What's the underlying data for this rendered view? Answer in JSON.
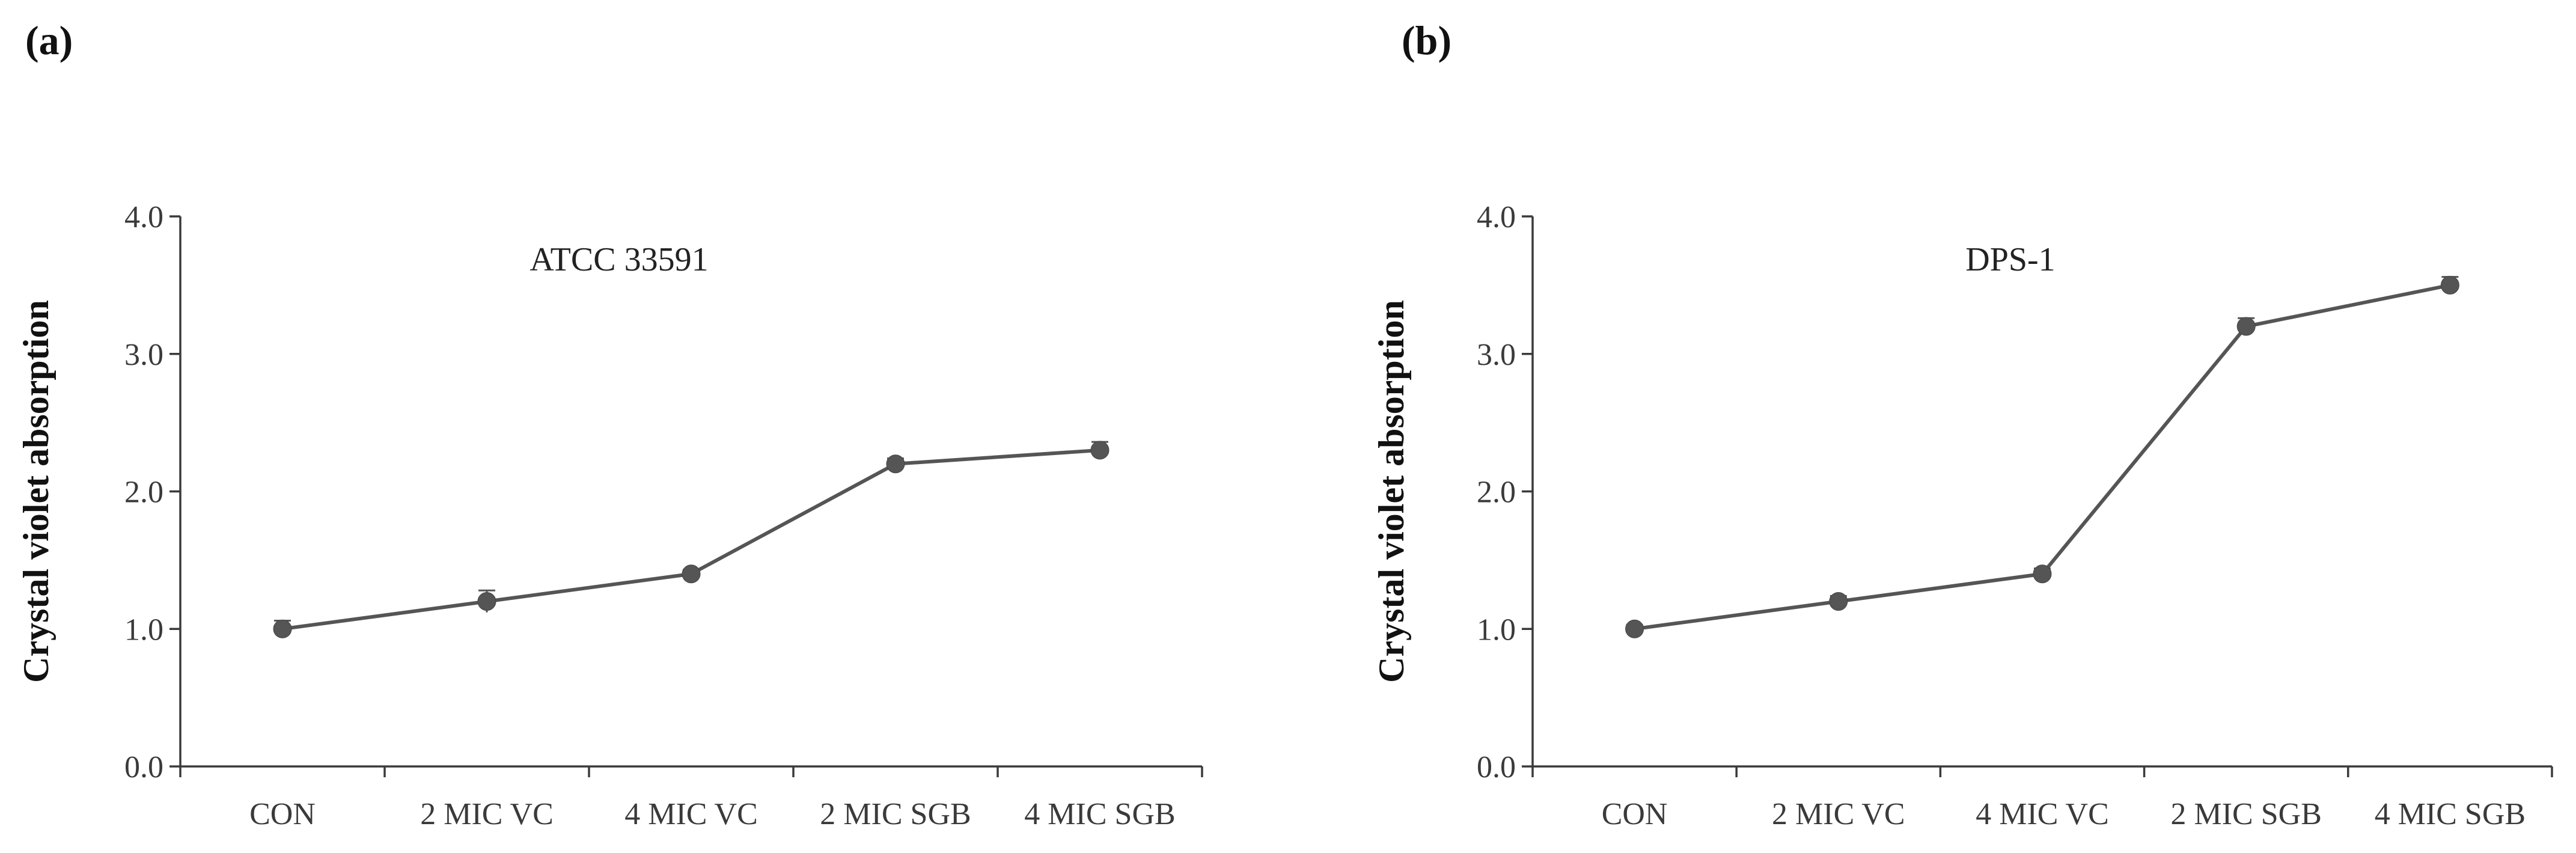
{
  "panels": [
    {
      "label": "(a)"
    },
    {
      "label": "(b)"
    }
  ],
  "chart_data": [
    {
      "type": "line",
      "title": "ATCC 33591",
      "xlabel": "",
      "ylabel": "Crystal violet absorption",
      "categories": [
        "CON",
        "2 MIC VC",
        "4 MIC VC",
        "2 MIC SGB",
        "4 MIC SGB"
      ],
      "series": [
        {
          "name": "ATCC 33591",
          "values": [
            1.0,
            1.2,
            1.4,
            2.2,
            2.3
          ],
          "errors": [
            0.06,
            0.08,
            0.03,
            0.04,
            0.06
          ]
        }
      ],
      "ylim": [
        0,
        4
      ],
      "yticks": [
        0.0,
        1.0,
        2.0,
        3.0,
        4.0
      ],
      "ytick_labels": [
        "0.0",
        "1.0",
        "2.0",
        "3.0",
        "4.0"
      ],
      "grid": false,
      "color": "#555555"
    },
    {
      "type": "line",
      "title": "DPS-1",
      "xlabel": "",
      "ylabel": "Crystal violet absorption",
      "categories": [
        "CON",
        "2 MIC VC",
        "4 MIC VC",
        "2 MIC SGB",
        "4 MIC SGB"
      ],
      "series": [
        {
          "name": "DPS-1",
          "values": [
            1.0,
            1.2,
            1.4,
            3.2,
            3.5
          ],
          "errors": [
            0.03,
            0.04,
            0.04,
            0.06,
            0.06
          ]
        }
      ],
      "ylim": [
        0,
        4
      ],
      "yticks": [
        0.0,
        1.0,
        2.0,
        3.0,
        4.0
      ],
      "ytick_labels": [
        "0.0",
        "1.0",
        "2.0",
        "3.0",
        "4.0"
      ],
      "grid": false,
      "color": "#555555"
    }
  ]
}
